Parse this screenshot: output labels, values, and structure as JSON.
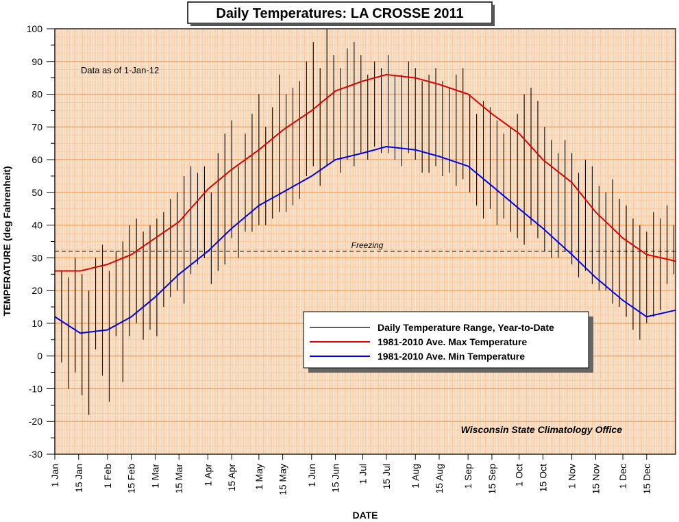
{
  "chart_data": {
    "type": "line",
    "title": "Daily Temperatures: LA CROSSE 2011",
    "ylabel": "TEMPERATURE (deg Fahrenheit)",
    "xlabel": "DATE",
    "ylim": [
      -30,
      100
    ],
    "yticks": [
      -30,
      -20,
      -10,
      0,
      10,
      20,
      30,
      40,
      50,
      60,
      70,
      80,
      90,
      100
    ],
    "ytick_labels": [
      "-30",
      "-20",
      "-10",
      "0",
      "10",
      "20",
      "30",
      "40",
      "50",
      "60",
      "70",
      "80",
      "90",
      "100"
    ],
    "xlim_days": [
      0,
      365
    ],
    "xtick_days": [
      0,
      14,
      31,
      45,
      59,
      73,
      90,
      104,
      120,
      134,
      151,
      165,
      181,
      195,
      212,
      226,
      243,
      257,
      273,
      287,
      304,
      318,
      334,
      348
    ],
    "xtick_labels": [
      "1 Jan",
      "15 Jan",
      "1 Feb",
      "15 Feb",
      "1 Mar",
      "15 Mar",
      "1 Apr",
      "15 Apr",
      "1 May",
      "15 May",
      "1 Jun",
      "15 Jun",
      "1 Jul",
      "15 Jul",
      "1 Aug",
      "15 Aug",
      "1 Sep",
      "15 Sep",
      "1 Oct",
      "15 Oct",
      "1 Nov",
      "15 Nov",
      "1 Dec",
      "15 Dec"
    ],
    "grid": true,
    "annotation_asof": "Data as of 1-Jan-12",
    "annotation_freezing": "Freezing",
    "freezing_value": 32,
    "source_credit": "Wisconsin State Climatology Office",
    "legend_position": "lower-right",
    "legend": [
      {
        "label": "Daily Temperature Range, Year-to-Date",
        "color": "#000000"
      },
      {
        "label": "1981-2010 Ave. Max Temperature",
        "color": "#e00000"
      },
      {
        "label": "1981-2010 Ave. Min Temperature",
        "color": "#0000ee"
      }
    ],
    "ave_max": {
      "name": "1981-2010 Ave. Max Temperature",
      "color": "#e00000",
      "day": [
        0,
        15,
        31,
        45,
        59,
        73,
        90,
        104,
        120,
        134,
        151,
        165,
        181,
        195,
        212,
        226,
        243,
        257,
        273,
        287,
        304,
        318,
        334,
        348,
        365
      ],
      "value": [
        26,
        26,
        28,
        31,
        36,
        41,
        51,
        57,
        63,
        69,
        75,
        81,
        84,
        86,
        85,
        83,
        80,
        74,
        68,
        60,
        53,
        44,
        36,
        31,
        29
      ]
    },
    "ave_min": {
      "name": "1981-2010 Ave. Min Temperature",
      "color": "#0000ee",
      "day": [
        0,
        15,
        31,
        45,
        59,
        73,
        90,
        104,
        120,
        134,
        151,
        165,
        181,
        195,
        212,
        226,
        243,
        257,
        273,
        287,
        304,
        318,
        334,
        348,
        365
      ],
      "value": [
        12,
        7,
        8,
        12,
        18,
        25,
        32,
        39,
        46,
        50,
        55,
        60,
        62,
        64,
        63,
        61,
        58,
        52,
        45,
        39,
        31,
        24,
        17,
        12,
        14
      ]
    },
    "daily_range": {
      "name": "Daily Temperature Range, Year-to-Date",
      "color": "#000000",
      "day": [
        0,
        4,
        8,
        12,
        16,
        20,
        24,
        28,
        32,
        36,
        40,
        44,
        48,
        52,
        56,
        60,
        64,
        68,
        72,
        76,
        80,
        84,
        88,
        92,
        96,
        100,
        104,
        108,
        112,
        116,
        120,
        124,
        128,
        132,
        136,
        140,
        144,
        148,
        152,
        156,
        160,
        164,
        168,
        172,
        176,
        180,
        184,
        188,
        192,
        196,
        200,
        204,
        208,
        212,
        216,
        220,
        224,
        228,
        232,
        236,
        240,
        244,
        248,
        252,
        256,
        260,
        264,
        268,
        272,
        276,
        280,
        284,
        288,
        292,
        296,
        300,
        304,
        308,
        312,
        316,
        320,
        324,
        328,
        332,
        336,
        340,
        344,
        348,
        352,
        356,
        360,
        364
      ],
      "low": [
        5,
        -2,
        -10,
        -5,
        -12,
        -18,
        2,
        -6,
        -14,
        6,
        -8,
        6,
        10,
        5,
        8,
        6,
        15,
        18,
        20,
        16,
        25,
        28,
        30,
        22,
        26,
        28,
        36,
        30,
        38,
        38,
        40,
        40,
        42,
        44,
        44,
        46,
        48,
        55,
        58,
        52,
        58,
        60,
        56,
        60,
        58,
        62,
        60,
        64,
        62,
        62,
        60,
        58,
        62,
        60,
        56,
        56,
        58,
        55,
        56,
        52,
        54,
        50,
        46,
        42,
        45,
        40,
        42,
        38,
        36,
        34,
        40,
        36,
        32,
        30,
        30,
        32,
        28,
        24,
        26,
        22,
        20,
        20,
        16,
        15,
        12,
        8,
        5,
        10,
        12,
        14,
        22,
        25
      ],
      "high": [
        22,
        26,
        24,
        30,
        25,
        20,
        30,
        34,
        26,
        32,
        35,
        40,
        42,
        38,
        40,
        42,
        44,
        48,
        50,
        55,
        58,
        56,
        58,
        50,
        62,
        68,
        72,
        58,
        68,
        74,
        80,
        70,
        76,
        86,
        80,
        82,
        84,
        90,
        96,
        88,
        100,
        92,
        88,
        94,
        96,
        92,
        86,
        90,
        88,
        92,
        86,
        86,
        90,
        88,
        84,
        86,
        88,
        84,
        82,
        86,
        88,
        80,
        74,
        78,
        76,
        72,
        68,
        70,
        74,
        80,
        82,
        78,
        70,
        66,
        62,
        66,
        62,
        56,
        60,
        58,
        52,
        50,
        54,
        48,
        46,
        42,
        40,
        38,
        44,
        42,
        46,
        40
      ]
    }
  }
}
